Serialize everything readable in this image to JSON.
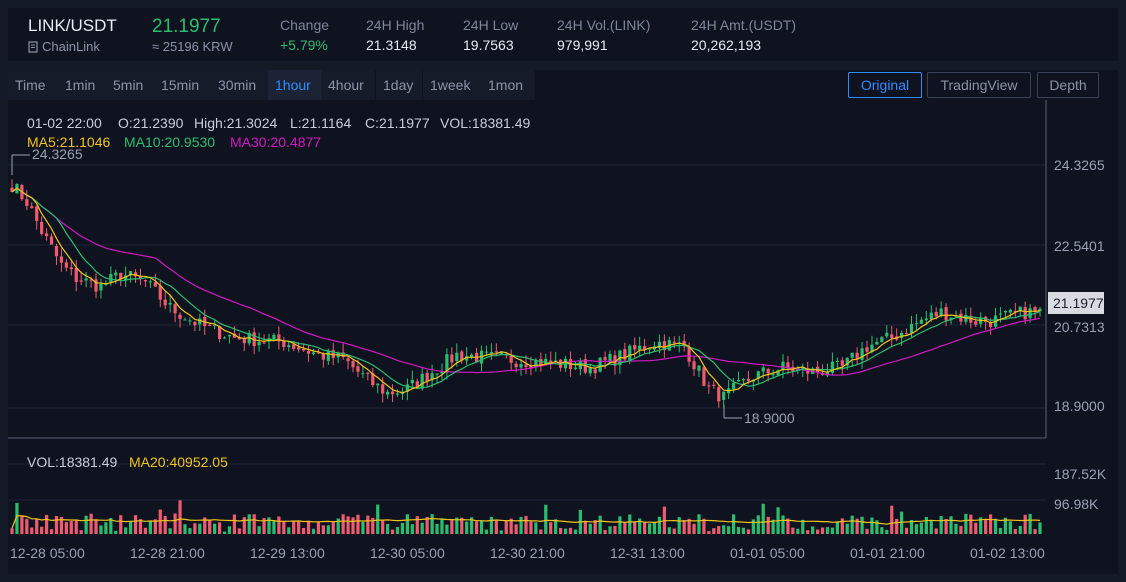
{
  "header": {
    "pair": "LINK/USDT",
    "coin_name": "ChainLink",
    "price": "21.1977",
    "price_krw": "≈ 25196 KRW",
    "stats": [
      {
        "label": "Change",
        "value": "+5.79%",
        "up": true
      },
      {
        "label": "24H High",
        "value": "21.3148"
      },
      {
        "label": "24H Low",
        "value": "19.7563"
      },
      {
        "label": "24H Vol.(LINK)",
        "value": "979,991"
      },
      {
        "label": "24H Amt.(USDT)",
        "value": "20,262,193"
      }
    ]
  },
  "toolbar": {
    "timeframes": [
      "Time",
      "1min",
      "5min",
      "15min",
      "30min",
      "1hour",
      "4hour",
      "1day",
      "1week",
      "1mon"
    ],
    "active_timeframe": "1hour",
    "views": [
      "Original",
      "TradingView",
      "Depth"
    ],
    "active_view": "Original"
  },
  "ohlc_info": {
    "time": "01-02 22:00",
    "open": "O:21.2390",
    "high": "High:21.3024",
    "low": "L:21.1164",
    "close": "C:21.1977",
    "volume": "VOL:18381.49"
  },
  "ma_info": {
    "ma5": "MA5:21.1046",
    "ma10": "MA10:20.9530",
    "ma30": "MA30:20.4877"
  },
  "vol_info": {
    "vol": "VOL:18381.49",
    "ma20": "MA20:40952.05"
  },
  "colors": {
    "up": "#2bbd6e",
    "down": "#ef5a6f",
    "ma5": "#f0c419",
    "ma10": "#2bbd6e",
    "ma30": "#d218c2",
    "accent": "#2f8cff"
  },
  "chart_data": {
    "type": "candlestick",
    "interval": "1 hour",
    "price_axis_labels": [
      "24.3265",
      "22.5401",
      "20.7313",
      "18.9000"
    ],
    "volume_axis_labels": [
      "187.52K",
      "96.98K"
    ],
    "time_labels": [
      "12-28 05:00",
      "12-28 21:00",
      "12-29 13:00",
      "12-30 05:00",
      "12-30 21:00",
      "12-31 13:00",
      "01-01 05:00",
      "01-01 21:00",
      "01-02 13:00"
    ],
    "last_price": "21.1977",
    "max_marker": "24.3265",
    "min_marker": "18.9000",
    "price_range": [
      18.55,
      25.2
    ],
    "volume_max": 230000,
    "close_anchors": [
      [
        0,
        24.2
      ],
      [
        3,
        23.8
      ],
      [
        6,
        23.1
      ],
      [
        10,
        22.3
      ],
      [
        13,
        22.0
      ],
      [
        18,
        21.8
      ],
      [
        22,
        22.1
      ],
      [
        27,
        21.9
      ],
      [
        32,
        21.3
      ],
      [
        38,
        20.9
      ],
      [
        45,
        20.6
      ],
      [
        55,
        20.5
      ],
      [
        62,
        20.2
      ],
      [
        67,
        20.1
      ],
      [
        72,
        19.6
      ],
      [
        76,
        19.3
      ],
      [
        80,
        19.4
      ],
      [
        85,
        19.8
      ],
      [
        90,
        20.2
      ],
      [
        100,
        20.1
      ],
      [
        110,
        20.0
      ],
      [
        117,
        19.9
      ],
      [
        124,
        20.2
      ],
      [
        130,
        20.5
      ],
      [
        136,
        20.4
      ],
      [
        141,
        19.4
      ],
      [
        144,
        19.2
      ],
      [
        150,
        19.7
      ],
      [
        156,
        19.9
      ],
      [
        162,
        19.8
      ],
      [
        168,
        19.9
      ],
      [
        173,
        20.4
      ],
      [
        178,
        20.6
      ],
      [
        184,
        21.0
      ],
      [
        188,
        21.2
      ],
      [
        195,
        21.0
      ],
      [
        198,
        21.0
      ],
      [
        205,
        21.2
      ],
      [
        208,
        21.2
      ]
    ]
  }
}
